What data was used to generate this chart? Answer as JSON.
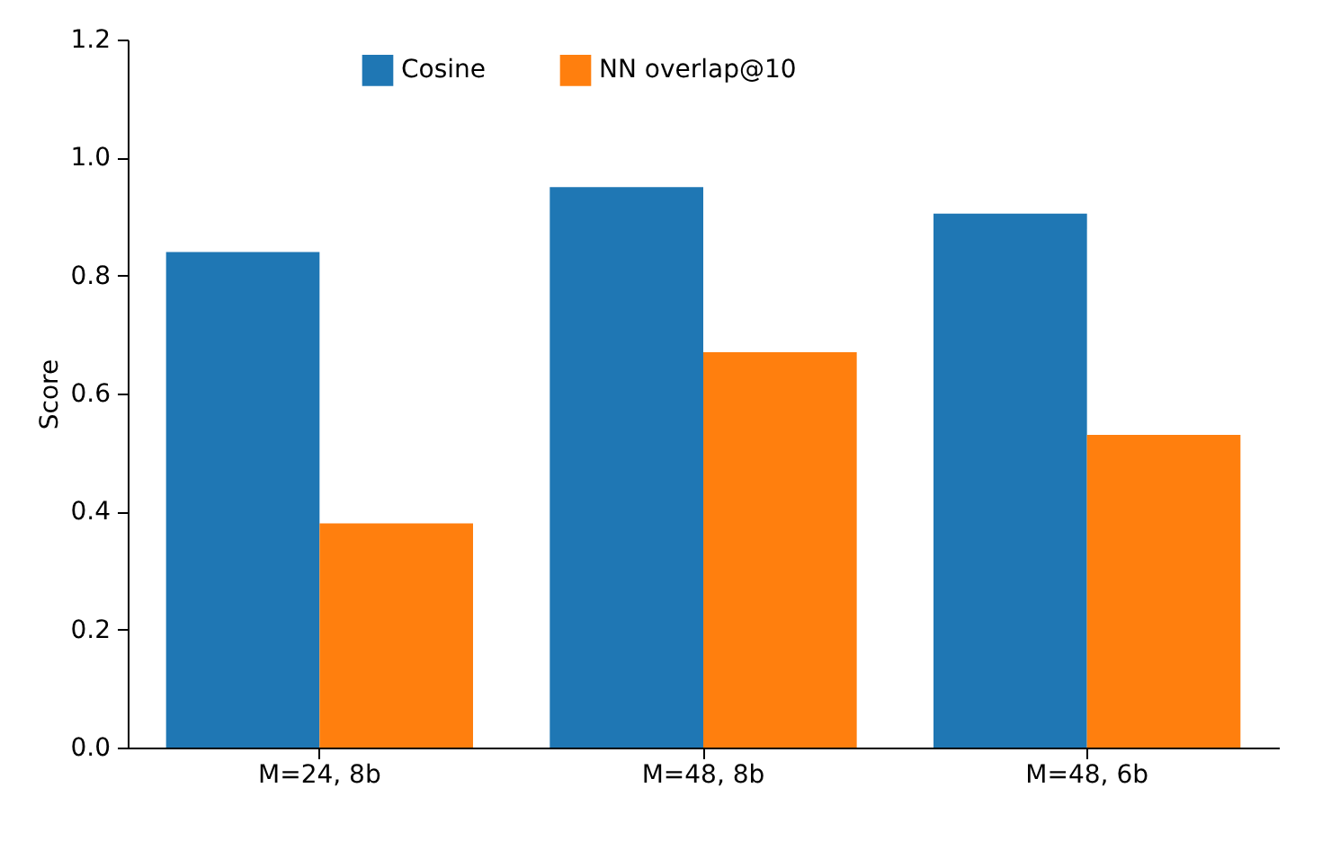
{
  "chart_data": {
    "type": "bar",
    "ylabel": "Score",
    "categories": [
      "M=24, 8b",
      "M=48, 8b",
      "M=48, 6b"
    ],
    "series": [
      {
        "name": "Cosine",
        "color": "#1f77b4",
        "values": [
          0.84,
          0.95,
          0.905
        ]
      },
      {
        "name": "NN overlap@10",
        "color": "#ff7f0e",
        "values": [
          0.38,
          0.67,
          0.53
        ]
      }
    ],
    "ylim": [
      0,
      1.2
    ],
    "yticks": [
      {
        "value": 0,
        "label": "0.0"
      },
      {
        "value": 0.2,
        "label": "0.2"
      },
      {
        "value": 0.4,
        "label": "0.4"
      },
      {
        "value": 0.6,
        "label": "0.6"
      },
      {
        "value": 0.8,
        "label": "0.8"
      },
      {
        "value": 1,
        "label": "1.0"
      },
      {
        "value": 1.2,
        "label": "1.2"
      }
    ],
    "grid": false,
    "legend": "top"
  }
}
